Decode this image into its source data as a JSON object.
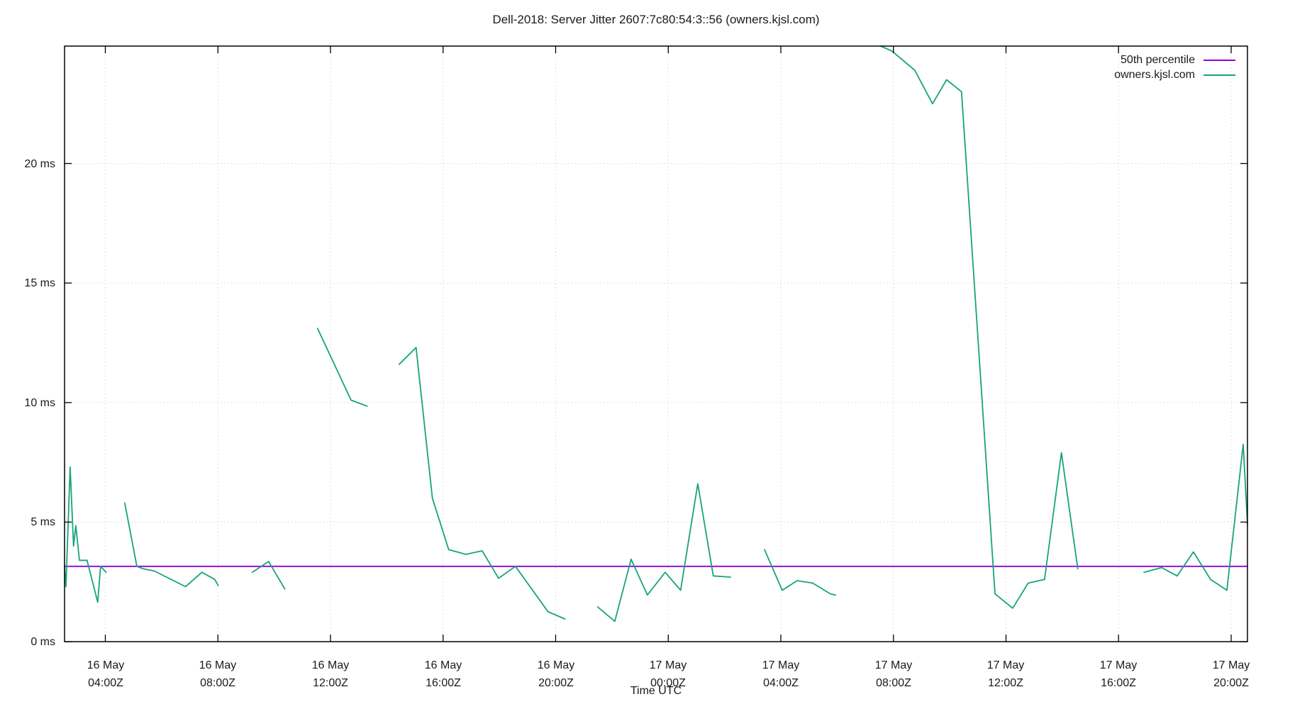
{
  "chart_data": {
    "type": "line",
    "title": "Dell-2018: Server Jitter 2607:7c80:54:3::56 (owners.kjsl.com)",
    "xlabel": "Time UTC",
    "ylabel_unit": "ms",
    "x_unit": "hours since 16 May 00:00Z",
    "grid": true,
    "legend_position": "top-right-inside",
    "axes": {
      "xlim_hours": [
        2.55,
        44.58
      ],
      "ylim_ms": [
        0,
        24.91
      ],
      "y_ticks": [
        0,
        5,
        10,
        15,
        20
      ],
      "y_tick_labels": [
        "0 ms",
        "5 ms",
        "10 ms",
        "15 ms",
        "20 ms"
      ],
      "x_ticks": [
        {
          "hours": 4,
          "line1": "16 May",
          "line2": "04:00Z"
        },
        {
          "hours": 8,
          "line1": "16 May",
          "line2": "08:00Z"
        },
        {
          "hours": 12,
          "line1": "16 May",
          "line2": "12:00Z"
        },
        {
          "hours": 16,
          "line1": "16 May",
          "line2": "16:00Z"
        },
        {
          "hours": 20,
          "line1": "16 May",
          "line2": "20:00Z"
        },
        {
          "hours": 24,
          "line1": "17 May",
          "line2": "00:00Z"
        },
        {
          "hours": 28,
          "line1": "17 May",
          "line2": "04:00Z"
        },
        {
          "hours": 32,
          "line1": "17 May",
          "line2": "08:00Z"
        },
        {
          "hours": 36,
          "line1": "17 May",
          "line2": "12:00Z"
        },
        {
          "hours": 40,
          "line1": "17 May",
          "line2": "16:00Z"
        },
        {
          "hours": 44,
          "line1": "17 May",
          "line2": "20:00Z"
        }
      ]
    },
    "series": [
      {
        "name": "50th percentile",
        "color": "#9400d3",
        "constant_ms": 3.15
      },
      {
        "name": "owners.kjsl.com",
        "color": "#17a37b",
        "segments": [
          [
            [
              2.55,
              3.2
            ],
            [
              2.6,
              2.3
            ],
            [
              2.75,
              7.3
            ],
            [
              2.87,
              4.0
            ],
            [
              2.95,
              4.85
            ],
            [
              3.08,
              3.4
            ],
            [
              3.35,
              3.4
            ],
            [
              3.73,
              1.65
            ],
            [
              3.83,
              3.15
            ],
            [
              4.03,
              2.9
            ]
          ],
          [
            [
              4.69,
              5.8
            ],
            [
              5.12,
              3.15
            ],
            [
              5.34,
              3.05
            ],
            [
              5.75,
              2.95
            ],
            [
              6.85,
              2.3
            ],
            [
              7.43,
              2.9
            ],
            [
              7.89,
              2.6
            ],
            [
              8.01,
              2.35
            ]
          ],
          [
            [
              9.22,
              2.9
            ],
            [
              9.8,
              3.35
            ],
            [
              10.38,
              2.2
            ]
          ],
          [
            [
              11.54,
              13.1
            ],
            [
              12.73,
              10.1
            ],
            [
              13.3,
              9.85
            ]
          ],
          [
            [
              14.44,
              11.6
            ],
            [
              15.04,
              12.3
            ],
            [
              15.62,
              6.0
            ],
            [
              16.2,
              3.85
            ],
            [
              16.81,
              3.65
            ],
            [
              17.39,
              3.8
            ],
            [
              17.97,
              2.65
            ],
            [
              18.57,
              3.15
            ],
            [
              19.73,
              1.25
            ],
            [
              20.33,
              0.95
            ]
          ],
          [
            [
              21.49,
              1.45
            ],
            [
              22.1,
              0.85
            ],
            [
              22.68,
              3.45
            ],
            [
              23.26,
              1.95
            ],
            [
              23.89,
              2.9
            ],
            [
              24.44,
              2.15
            ],
            [
              25.05,
              6.6
            ],
            [
              25.6,
              2.75
            ],
            [
              26.21,
              2.7
            ]
          ],
          [
            [
              27.42,
              3.85
            ],
            [
              28.05,
              2.15
            ],
            [
              28.58,
              2.55
            ],
            [
              29.13,
              2.45
            ],
            [
              29.76,
              2.0
            ],
            [
              29.94,
              1.95
            ]
          ],
          [
            [
              31.55,
              24.91
            ],
            [
              31.95,
              24.7
            ],
            [
              32.76,
              23.9
            ],
            [
              33.39,
              22.5
            ],
            [
              33.89,
              23.5
            ],
            [
              34.42,
              23.0
            ],
            [
              35.61,
              2.0
            ],
            [
              36.24,
              1.4
            ],
            [
              36.79,
              2.45
            ],
            [
              37.37,
              2.6
            ],
            [
              37.97,
              7.9
            ],
            [
              38.55,
              3.05
            ]
          ],
          [
            [
              40.9,
              2.9
            ],
            [
              41.53,
              3.1
            ],
            [
              42.08,
              2.75
            ],
            [
              42.66,
              3.75
            ],
            [
              43.27,
              2.6
            ],
            [
              43.85,
              2.15
            ],
            [
              44.43,
              8.25
            ],
            [
              44.58,
              4.9
            ]
          ]
        ]
      }
    ]
  }
}
